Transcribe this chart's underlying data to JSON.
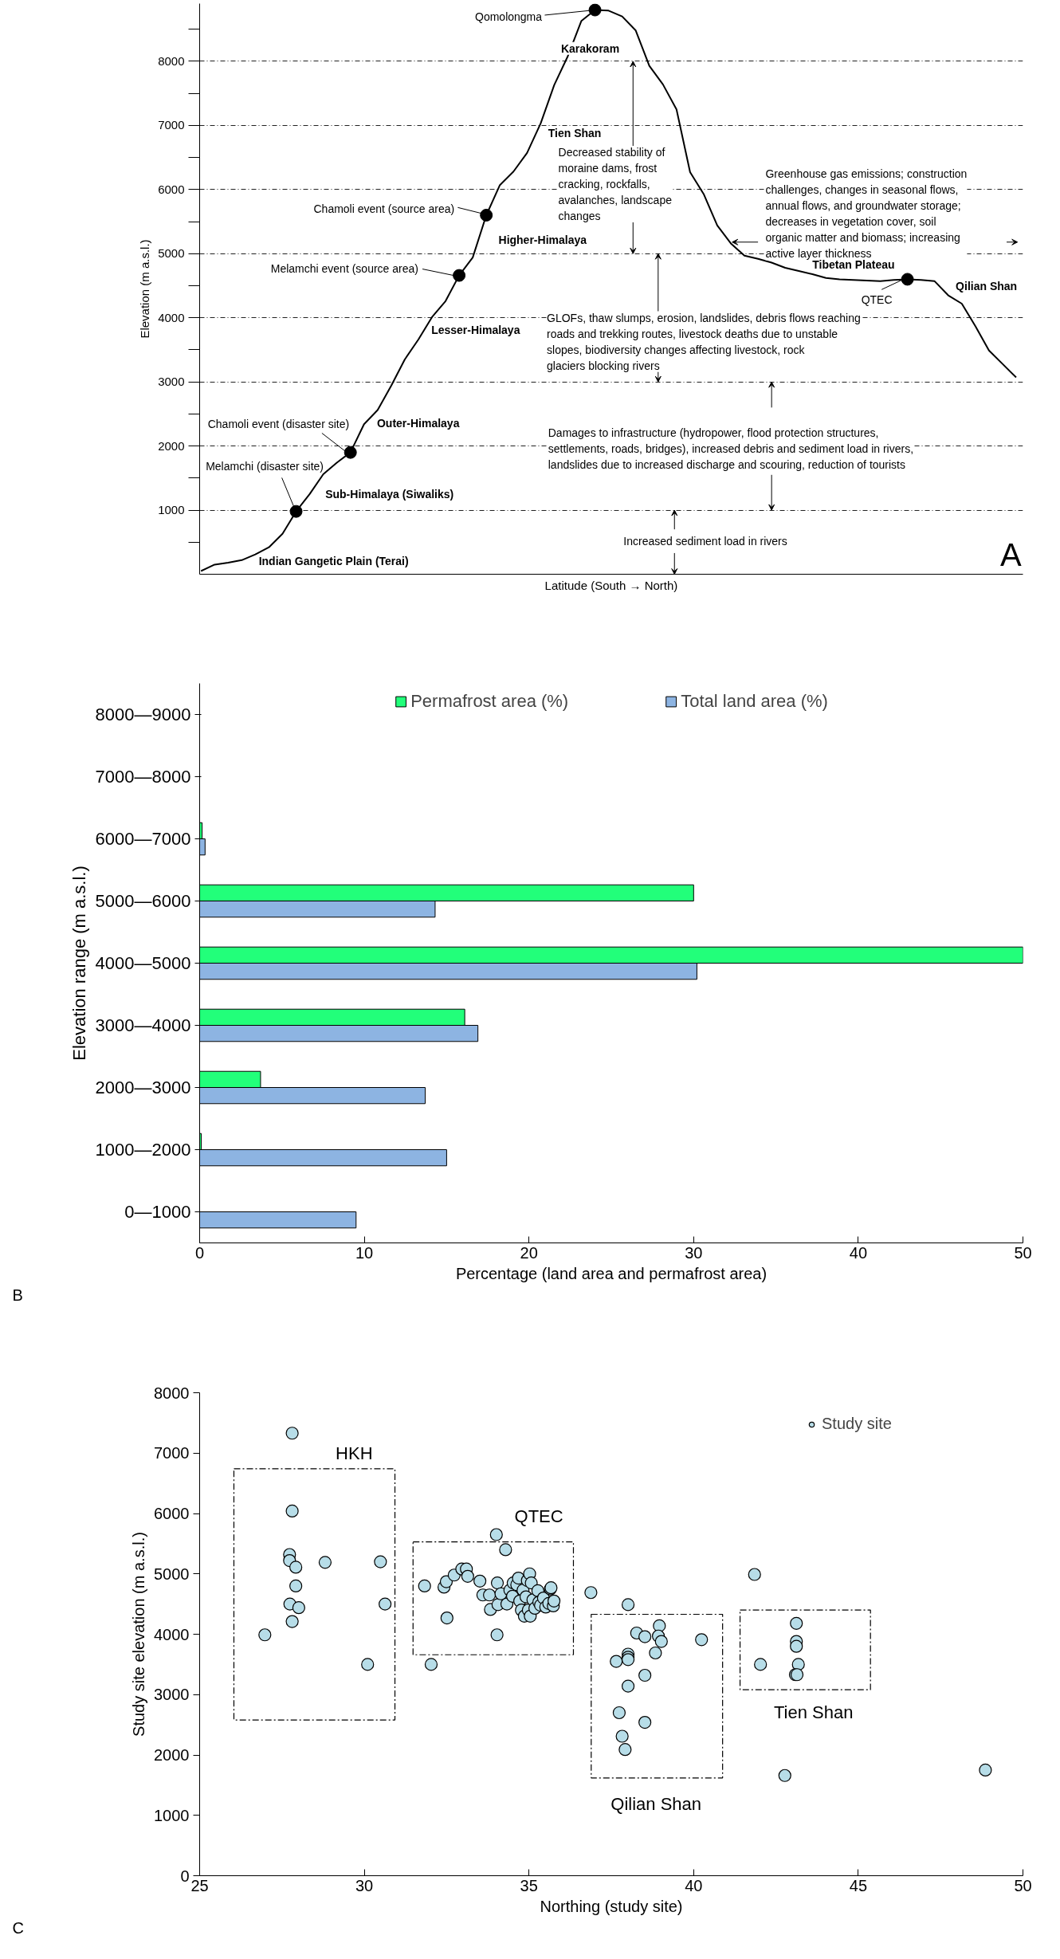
{
  "chart_data": [
    {
      "type": "line",
      "xlabel": "Latitude (South → North)",
      "ylabel": "Elevation (m a.s.l.)",
      "tick_labels": "y",
      "grid": "y",
      "categories": [
        null,
        null,
        null,
        null,
        null,
        null,
        null,
        null,
        null,
        null,
        null,
        null,
        null,
        null,
        null,
        null,
        null,
        null,
        null,
        null,
        null,
        null,
        null,
        null,
        null,
        null,
        null,
        null,
        null,
        null,
        null,
        null,
        null,
        null,
        null,
        null,
        null,
        null,
        null,
        null,
        null,
        null,
        null,
        null,
        null,
        null,
        null,
        null,
        null,
        null,
        null,
        null,
        null,
        null,
        null,
        null,
        null,
        null,
        null,
        null,
        null
      ],
      "ylim": [
        0,
        8900
      ],
      "yticks": [
        {
          "value": 500,
          "label": null
        },
        1000,
        {
          "value": 1500,
          "label": null
        },
        2000,
        {
          "value": 2500,
          "label": null
        },
        3000,
        {
          "value": 3500,
          "label": null
        },
        4000,
        {
          "value": 4500,
          "label": null
        },
        5000,
        {
          "value": 5500,
          "label": null
        },
        6000,
        {
          "value": 6500,
          "label": null
        },
        7000,
        {
          "value": 7500,
          "label": null
        },
        8000,
        {
          "value": 8500,
          "label": null
        }
      ],
      "series": [
        {
          "type": "line",
          "color": "#000000",
          "values": [
            50,
            150,
            180,
            220,
            310,
            420,
            630,
            980,
            1250,
            1560,
            1740,
            1900,
            2340,
            2560,
            2940,
            3350,
            3660,
            4010,
            4260,
            4660,
            4940,
            5600,
            6070,
            6280,
            6570,
            7030,
            7630,
            8080,
            8630,
            8800,
            8790,
            8700,
            8480,
            7930,
            7640,
            7250,
            6270,
            5930,
            5440,
            5160,
            4970,
            4920,
            4860,
            4780,
            4730,
            4680,
            4620,
            4600,
            4590,
            4580,
            4570,
            4590,
            4600,
            4590,
            4570,
            4350,
            4220,
            3870,
            3490,
            3280,
            3070
          ]
        },
        {
          "type": "scatter",
          "marker": "circle",
          "color": "#000000",
          "values": [
            null,
            null,
            null,
            null,
            null,
            null,
            null,
            980,
            null,
            null,
            null,
            1900,
            null,
            null,
            null,
            null,
            null,
            null,
            null,
            4660,
            null,
            5600,
            null,
            null,
            null,
            null,
            null,
            null,
            null,
            8800,
            null,
            null,
            null,
            null,
            null,
            null,
            null,
            null,
            null,
            null,
            null,
            null,
            null,
            null,
            null,
            null,
            null,
            null,
            null,
            null,
            null,
            null,
            4600,
            null,
            null,
            null,
            null,
            null,
            null,
            null,
            null
          ]
        }
      ],
      "annotations": [
        "Qomolongma",
        "Karakoram",
        "Tien Shan",
        "Decreased stability of moraine dams, frost cracking, rockfalls, avalanches, landscape changes",
        "Chamoli event (source area)",
        "Higher-Himalaya",
        "Melamchi event (source area)",
        "Lesser-Himalaya",
        "GLOFs, thaw slumps, erosion, landslides, debris flows reaching roads and trekking routes, livestock deaths due to unstable slopes, biodiversity changes affecting livestock, rock glaciers blocking rivers",
        "Greenhouse gas emissions; construction challenges, changes in seasonal flows, annual flows, and groundwater storage; decreases in vegetation cover, soil organic matter and biomass; increasing active layer thickness",
        "Tibetan Plateau",
        "QTEC",
        "Qilian Shan",
        "Outer-Himalaya",
        "Chamoli event (disaster site)",
        "Melamchi (disaster site)",
        "Sub-Himalaya (Siwaliks)",
        "Damages to infrastructure (hydropower, flood protection structures, settlements, roads, bridges), increased debris and sediment load in rivers, landslides due to increased discharge and scouring, reduction of tourists",
        "Increased sediment load in rivers",
        "Indian Gangetic Plain (Terai)",
        "A"
      ]
    },
    {
      "type": "bar",
      "orientation": "horizontal",
      "xlabel": "Percentage (land area and permafrost area)",
      "ylabel": "Elevation range (m a.s.l.)",
      "categories": [
        "8000—9000",
        "7000—8000",
        "6000—7000",
        "5000—6000",
        "4000—5000",
        "3000—4000",
        "2000—3000",
        "1000—2000",
        "0—1000"
      ],
      "xlim": [
        0,
        50
      ],
      "xticks": [
        0,
        10,
        20,
        30,
        40,
        50
      ],
      "legend": "top",
      "series": [
        {
          "name": "Permafrost area (%)",
          "color": "#22ff7a",
          "values": [
            null,
            null,
            0.15,
            30.0,
            50.0,
            16.1,
            3.7,
            0.1,
            null
          ]
        },
        {
          "name": "Total land area (%)",
          "color": "#8db4e2",
          "values": [
            null,
            null,
            0.33,
            14.3,
            30.2,
            16.9,
            13.7,
            15.0,
            9.5
          ]
        }
      ],
      "annotations": [
        "B"
      ]
    },
    {
      "type": "scatter",
      "xlabel": "Northing (study site)",
      "ylabel": "Study site elevation (m a.s.l.)",
      "xlim": [
        25,
        50
      ],
      "xticks": [
        25,
        30,
        35,
        40,
        45,
        50
      ],
      "ylim": [
        0,
        8000
      ],
      "yticks": [
        0,
        1000,
        2000,
        3000,
        4000,
        5000,
        6000,
        7000,
        8000
      ],
      "legend": "top right",
      "marker": "circle",
      "series": [
        {
          "name": "Study site",
          "color": "#b7dde8",
          "x": [
            27.81,
            27.81,
            27.73,
            27.73,
            27.92,
            27.92,
            28.81,
            30.49,
            30.63,
            27.74,
            28.01,
            27.81,
            26.98,
            30.1,
            31.83,
            32.03,
            32.42,
            32.49,
            32.51,
            32.73,
            32.96,
            33.1,
            33.14,
            33.51,
            33.6,
            33.8,
            33.83,
            34.01,
            34.03,
            34.04,
            34.06,
            34.15,
            34.29,
            34.33,
            34.42,
            34.5,
            34.52,
            34.63,
            34.68,
            34.72,
            34.77,
            34.82,
            34.86,
            34.91,
            34.95,
            34.98,
            35.02,
            35.04,
            35.07,
            35.12,
            35.18,
            35.27,
            35.3,
            35.35,
            35.44,
            35.51,
            35.6,
            35.65,
            35.67,
            35.74,
            35.76,
            36.88,
            37.65,
            37.74,
            37.83,
            37.92,
            38.01,
            38.01,
            38.01,
            38.01,
            38.01,
            38.27,
            38.52,
            38.52,
            38.52,
            38.84,
            38.96,
            38.93,
            39.02,
            40.24,
            41.85,
            42.03,
            42.77,
            43.12,
            43.12,
            43.12,
            43.18,
            43.09,
            43.14,
            48.86
          ],
          "values": [
            7330,
            6040,
            5320,
            5220,
            5110,
            4800,
            5190,
            5200,
            4500,
            4500,
            4440,
            4210,
            3990,
            3500,
            4800,
            3500,
            4780,
            4870,
            4270,
            4980,
            5080,
            5080,
            4960,
            4880,
            4650,
            4650,
            4410,
            5650,
            3990,
            4850,
            4490,
            4670,
            5400,
            4500,
            4730,
            4630,
            4850,
            4820,
            4930,
            4550,
            4400,
            4730,
            4300,
            4620,
            4890,
            4400,
            5000,
            4300,
            4850,
            4570,
            4430,
            4720,
            4530,
            4480,
            4600,
            4450,
            4510,
            4750,
            4770,
            4470,
            4550,
            4690,
            3550,
            2700,
            2310,
            2090,
            4490,
            3670,
            3620,
            3580,
            3140,
            4020,
            3960,
            3320,
            2540,
            3690,
            4140,
            3970,
            3880,
            3910,
            4990,
            3500,
            1660,
            4180,
            3880,
            3800,
            3500,
            3330,
            3330,
            1750
          ]
        }
      ],
      "annotations": [
        "HKH",
        "QTEC",
        "Qilian Shan",
        "Tien Shan",
        "C"
      ]
    }
  ]
}
